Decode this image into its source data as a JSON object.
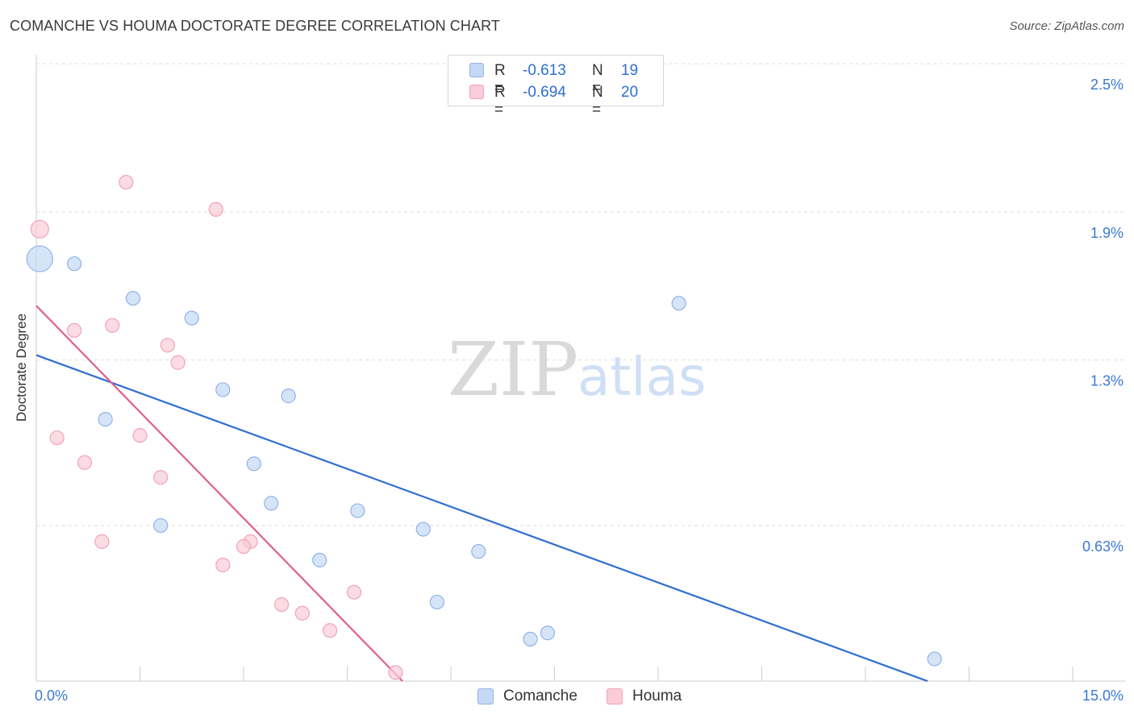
{
  "header": {
    "title": "COMANCHE VS HOUMA DOCTORATE DEGREE CORRELATION CHART",
    "source": "Source: ZipAtlas.com"
  },
  "watermark": {
    "zip": "ZIP",
    "atlas": "atlas"
  },
  "legend": {
    "rows": [
      {
        "r_label": "R =",
        "r_value": "-0.613",
        "n_label": "N =",
        "n_value": "19"
      },
      {
        "r_label": "R =",
        "r_value": "-0.694",
        "n_label": "N =",
        "n_value": "20"
      }
    ]
  },
  "bottom_legend": {
    "series1": "Comanche",
    "series2": "Houma"
  },
  "colors": {
    "comanche_fill": "#c5d9f5",
    "comanche_stroke": "#8fb3e8",
    "comanche_line": "#2f6fcf",
    "houma_fill": "#f9ccd9",
    "houma_stroke": "#f0a3ba",
    "houma_line": "#e0608a",
    "tick_label": "#3a78d4",
    "grid": "#dddddd"
  },
  "chart_data": {
    "type": "scatter",
    "title": "COMANCHE VS HOUMA DOCTORATE DEGREE CORRELATION CHART",
    "xlabel": "",
    "ylabel": "Doctorate Degree",
    "xlim": [
      0,
      15
    ],
    "ylim": [
      0,
      2.5
    ],
    "x_tick_labels": [
      {
        "value": 0,
        "label": "0.0%"
      },
      {
        "value": 15,
        "label": "15.0%"
      }
    ],
    "y_tick_labels": [
      {
        "value": 0.63,
        "label": "0.63%"
      },
      {
        "value": 1.3,
        "label": "1.3%"
      },
      {
        "value": 1.9,
        "label": "1.9%"
      },
      {
        "value": 2.5,
        "label": "2.5%"
      }
    ],
    "series": [
      {
        "name": "Comanche",
        "points": [
          {
            "x": 0.05,
            "y": 1.71,
            "size": 3
          },
          {
            "x": 0.55,
            "y": 1.69,
            "size": 1
          },
          {
            "x": 1.4,
            "y": 1.55,
            "size": 1
          },
          {
            "x": 2.25,
            "y": 1.47,
            "size": 1
          },
          {
            "x": 9.3,
            "y": 1.53,
            "size": 1
          },
          {
            "x": 2.7,
            "y": 1.18,
            "size": 1
          },
          {
            "x": 3.65,
            "y": 1.155,
            "size": 1
          },
          {
            "x": 1.0,
            "y": 1.06,
            "size": 1
          },
          {
            "x": 3.15,
            "y": 0.88,
            "size": 1
          },
          {
            "x": 3.4,
            "y": 0.72,
            "size": 1
          },
          {
            "x": 4.65,
            "y": 0.69,
            "size": 1
          },
          {
            "x": 1.8,
            "y": 0.63,
            "size": 1
          },
          {
            "x": 5.6,
            "y": 0.615,
            "size": 1
          },
          {
            "x": 6.4,
            "y": 0.525,
            "size": 1
          },
          {
            "x": 4.1,
            "y": 0.49,
            "size": 1
          },
          {
            "x": 5.8,
            "y": 0.32,
            "size": 1
          },
          {
            "x": 7.4,
            "y": 0.195,
            "size": 1
          },
          {
            "x": 7.15,
            "y": 0.17,
            "size": 1
          },
          {
            "x": 13.0,
            "y": 0.09,
            "size": 1
          }
        ],
        "trendline": {
          "x": [
            0.0,
            12.9
          ],
          "y": [
            1.32,
            0.0
          ]
        }
      },
      {
        "name": "Houma",
        "points": [
          {
            "x": 0.05,
            "y": 1.83,
            "size": 2
          },
          {
            "x": 1.3,
            "y": 2.02,
            "size": 1
          },
          {
            "x": 2.6,
            "y": 1.91,
            "size": 1
          },
          {
            "x": 0.55,
            "y": 1.42,
            "size": 1
          },
          {
            "x": 1.1,
            "y": 1.44,
            "size": 1
          },
          {
            "x": 1.9,
            "y": 1.36,
            "size": 1
          },
          {
            "x": 2.05,
            "y": 1.29,
            "size": 1
          },
          {
            "x": 0.3,
            "y": 0.985,
            "size": 1
          },
          {
            "x": 1.5,
            "y": 0.995,
            "size": 1
          },
          {
            "x": 0.7,
            "y": 0.885,
            "size": 1
          },
          {
            "x": 1.8,
            "y": 0.825,
            "size": 1
          },
          {
            "x": 0.95,
            "y": 0.565,
            "size": 1
          },
          {
            "x": 3.1,
            "y": 0.565,
            "size": 1
          },
          {
            "x": 3.0,
            "y": 0.545,
            "size": 1
          },
          {
            "x": 2.7,
            "y": 0.47,
            "size": 1
          },
          {
            "x": 4.6,
            "y": 0.36,
            "size": 1
          },
          {
            "x": 3.55,
            "y": 0.31,
            "size": 1
          },
          {
            "x": 3.85,
            "y": 0.275,
            "size": 1
          },
          {
            "x": 4.25,
            "y": 0.205,
            "size": 1
          },
          {
            "x": 5.2,
            "y": 0.035,
            "size": 1
          }
        ],
        "trendline": {
          "x": [
            0.0,
            5.3
          ],
          "y": [
            1.52,
            0.0
          ]
        }
      }
    ]
  }
}
